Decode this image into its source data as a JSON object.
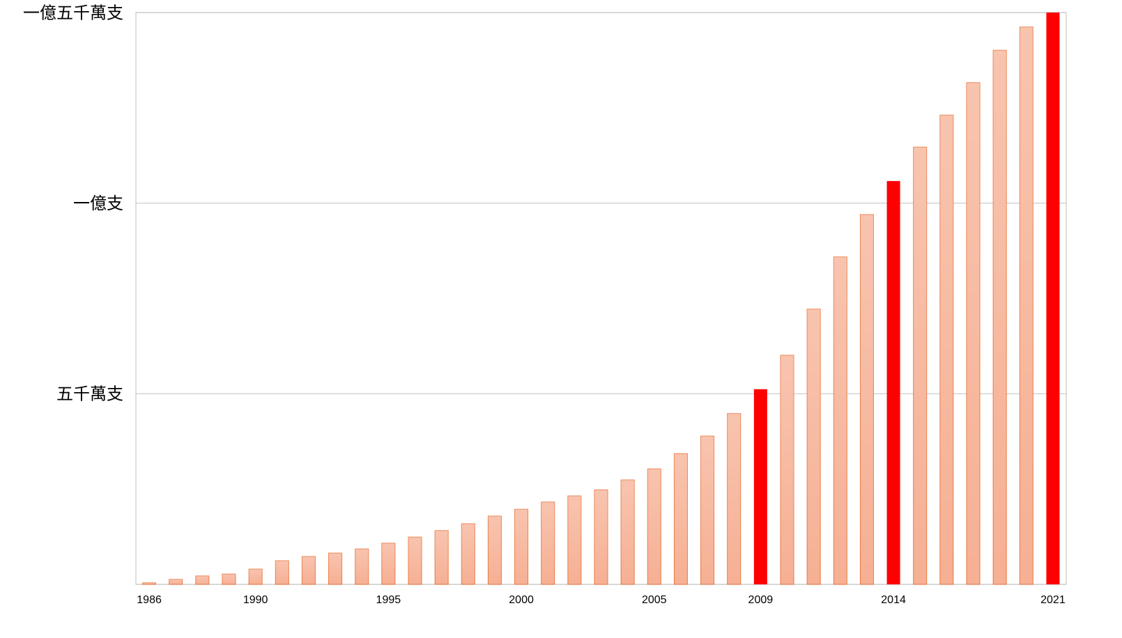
{
  "chart_data": {
    "type": "bar",
    "categories": [
      "1986",
      null,
      null,
      null,
      "1990",
      null,
      null,
      null,
      null,
      "1995",
      null,
      null,
      null,
      null,
      "2000",
      null,
      null,
      null,
      null,
      "2005",
      null,
      null,
      null,
      "2009",
      null,
      null,
      null,
      null,
      "2014",
      null,
      null,
      null,
      null,
      null,
      "2021"
    ],
    "values": [
      400000,
      1300000,
      2200000,
      2700000,
      4000000,
      6200000,
      7300000,
      8200000,
      9300000,
      10800000,
      12400000,
      14100000,
      15900000,
      17900000,
      19700000,
      21600000,
      23200000,
      24800000,
      27400000,
      30300000,
      34300000,
      38900000,
      44800000,
      51200000,
      60100000,
      72200000,
      85900000,
      97000000,
      105800000,
      114700000,
      123100000,
      131600000,
      140100000,
      146200000,
      150000000
    ],
    "colors": [
      "#f6b094",
      "#f6b094",
      "#f6b094",
      "#f6b094",
      "#f6b094",
      "#f6b094",
      "#f6b094",
      "#f6b094",
      "#f6b094",
      "#f6b094",
      "#f6b094",
      "#f6b094",
      "#f6b094",
      "#f6b094",
      "#f6b094",
      "#f6b094",
      "#f6b094",
      "#f6b094",
      "#f6b094",
      "#f6b094",
      "#f6b094",
      "#f6b094",
      "#f6b094",
      "#ff0000",
      "#f6b094",
      "#f6b094",
      "#f6b094",
      "#f6b094",
      "#ff0000",
      "#f6b094",
      "#f6b094",
      "#f6b094",
      "#f6b094",
      "#f6b094",
      "#ff0000"
    ],
    "ylim": [
      0,
      150000000
    ],
    "yticks": [
      {
        "value": 50000000,
        "label": "五千萬支"
      },
      {
        "value": 100000000,
        "label": "一億支"
      },
      {
        "value": 150000000,
        "label": "一億五千萬支"
      }
    ],
    "grid": true
  }
}
